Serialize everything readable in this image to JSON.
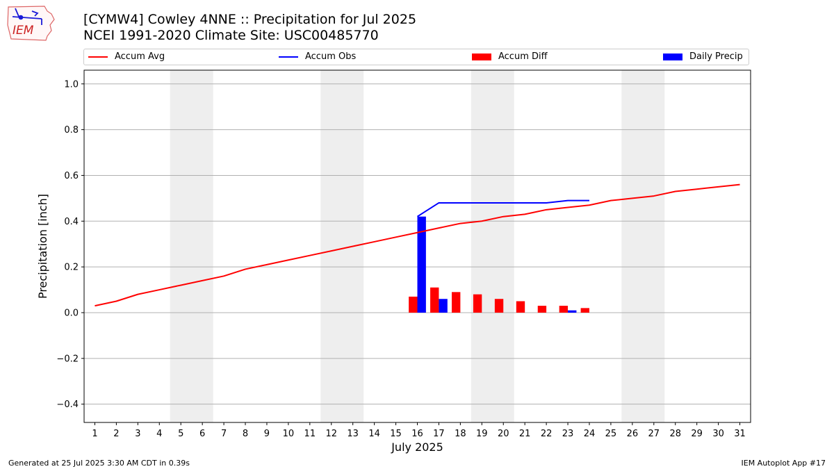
{
  "header": {
    "title_line1": "[CYMW4] Cowley 4NNE :: Precipitation for Jul 2025",
    "title_line2": "NCEI 1991-2020 Climate Site: USC00485770",
    "logo_text": "IEM"
  },
  "footer": {
    "left": "Generated at 25 Jul 2025 3:30 AM CDT in 0.39s",
    "right": "IEM Autoplot App #17"
  },
  "colors": {
    "avg": "#ff0000",
    "obs": "#0000ff",
    "diff": "#ff0000",
    "daily": "#0000ff",
    "weekend": "#eeeeee",
    "grid": "#b0b0b0"
  },
  "chart_data": {
    "type": "bar",
    "xlabel": "July 2025",
    "ylabel": "Precipitation [inch]",
    "xlim": [
      0.5,
      31.5
    ],
    "ylim": [
      -0.48,
      1.06
    ],
    "yticks": [
      -0.4,
      -0.2,
      0.0,
      0.2,
      0.4,
      0.6,
      0.8,
      1.0
    ],
    "ytick_labels": [
      "−0.4",
      "−0.2",
      "0.0",
      "0.2",
      "0.4",
      "0.6",
      "0.8",
      "1.0"
    ],
    "x": [
      1,
      2,
      3,
      4,
      5,
      6,
      7,
      8,
      9,
      10,
      11,
      12,
      13,
      14,
      15,
      16,
      17,
      18,
      19,
      20,
      21,
      22,
      23,
      24,
      25,
      26,
      27,
      28,
      29,
      30,
      31
    ],
    "grid": "horizontal",
    "legend_position": "top",
    "weekend_spans": [
      [
        4.5,
        6.5
      ],
      [
        11.5,
        13.5
      ],
      [
        18.5,
        20.5
      ],
      [
        25.5,
        27.5
      ]
    ],
    "legend": [
      "Accum Avg",
      "Accum Obs",
      "Accum Diff",
      "Daily Precip"
    ],
    "series": [
      {
        "name": "Accum Avg",
        "type": "line",
        "x": [
          1,
          2,
          3,
          4,
          5,
          6,
          7,
          8,
          9,
          10,
          11,
          12,
          13,
          14,
          15,
          16,
          17,
          18,
          19,
          20,
          21,
          22,
          23,
          24,
          25,
          26,
          27,
          28,
          29,
          30,
          31
        ],
        "values": [
          0.03,
          0.05,
          0.08,
          0.1,
          0.12,
          0.14,
          0.16,
          0.19,
          0.21,
          0.23,
          0.25,
          0.27,
          0.29,
          0.31,
          0.33,
          0.35,
          0.37,
          0.39,
          0.4,
          0.42,
          0.43,
          0.45,
          0.46,
          0.47,
          0.49,
          0.5,
          0.51,
          0.53,
          0.54,
          0.55,
          0.56
        ]
      },
      {
        "name": "Accum Obs",
        "type": "line",
        "x": [
          16,
          17,
          18,
          19,
          20,
          21,
          22,
          23,
          24
        ],
        "values": [
          0.42,
          0.48,
          0.48,
          0.48,
          0.48,
          0.48,
          0.48,
          0.49,
          0.49
        ]
      },
      {
        "name": "Accum Diff",
        "type": "bar",
        "x": [
          16,
          17,
          18,
          19,
          20,
          21,
          22,
          23,
          24
        ],
        "values": [
          0.07,
          0.11,
          0.09,
          0.08,
          0.06,
          0.05,
          0.03,
          0.03,
          0.02
        ]
      },
      {
        "name": "Daily Precip",
        "type": "bar",
        "x": [
          16,
          17,
          18,
          19,
          20,
          21,
          22,
          23,
          24
        ],
        "values": [
          0.42,
          0.06,
          0.0,
          0.0,
          0.0,
          0.0,
          0.0,
          0.01,
          0.0
        ]
      }
    ]
  }
}
